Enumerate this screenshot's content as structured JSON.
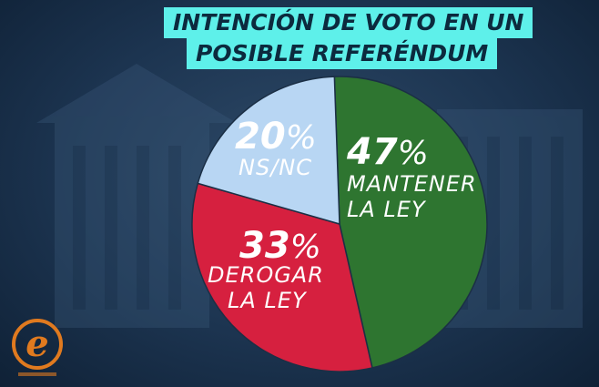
{
  "title": {
    "line1": "INTENCIÓN DE VOTO EN UN",
    "line2": "POSIBLE REFERÉNDUM"
  },
  "colors": {
    "mantener": "#2e7530",
    "derogar": "#d6203f",
    "nsnc": "#b8d6f3",
    "title_bg": "#5ef0ea",
    "logo": "#e07a1f"
  },
  "logo": {
    "icon": "e-logo-icon"
  },
  "chart_data": {
    "type": "pie",
    "slices": [
      {
        "value": 47,
        "percent_text": "47",
        "label_lines": [
          "MANTENER",
          "LA LEY"
        ],
        "color": "#2e7530"
      },
      {
        "value": 33,
        "percent_text": "33",
        "label_lines": [
          "DEROGAR",
          "LA LEY"
        ],
        "color": "#d6203f"
      },
      {
        "value": 20,
        "percent_text": "20",
        "label_lines": [
          "NS/NC"
        ],
        "color": "#b8d6f3"
      }
    ],
    "percent_sign": "%"
  }
}
